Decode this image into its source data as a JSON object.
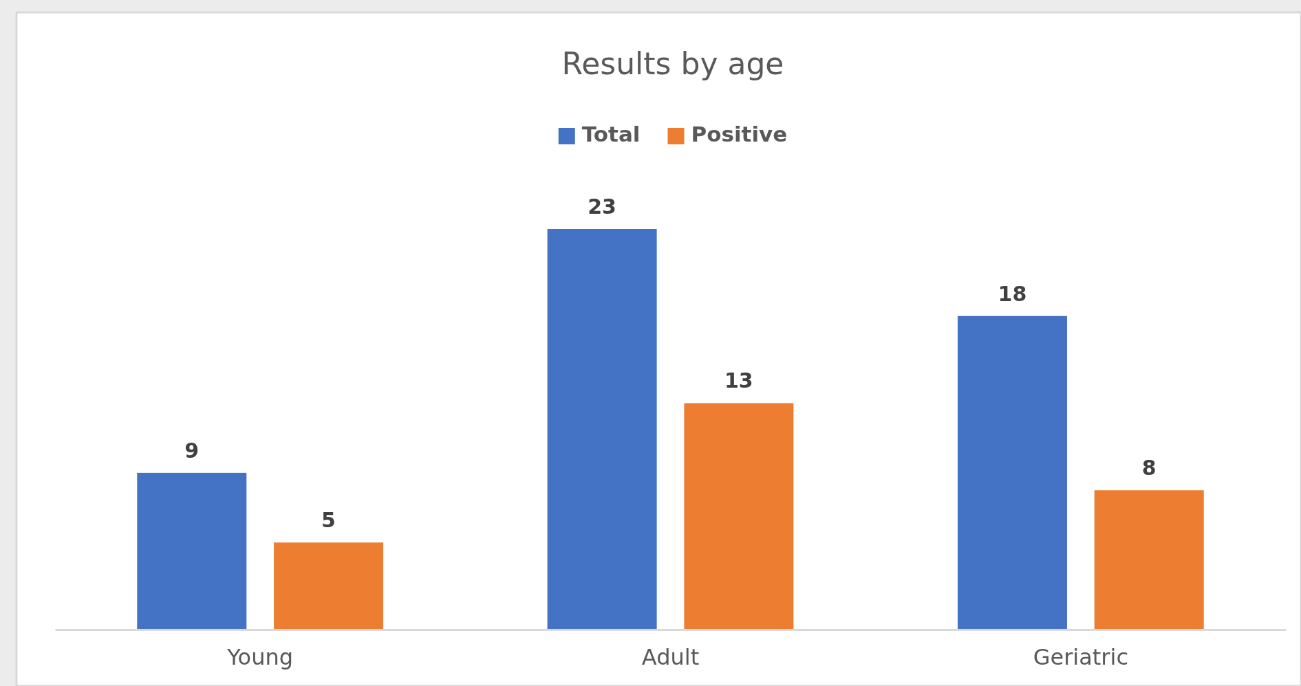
{
  "chart_data": {
    "type": "bar",
    "title": "Results by age",
    "categories": [
      "Young",
      "Adult",
      "Geriatric"
    ],
    "series": [
      {
        "name": "Total",
        "color": "#4472c4",
        "values": [
          9,
          23,
          18
        ]
      },
      {
        "name": "Positive",
        "color": "#ed7d31",
        "values": [
          5,
          13,
          8
        ]
      }
    ],
    "data_labels": true,
    "legend": "top",
    "tick_labels": "x"
  }
}
